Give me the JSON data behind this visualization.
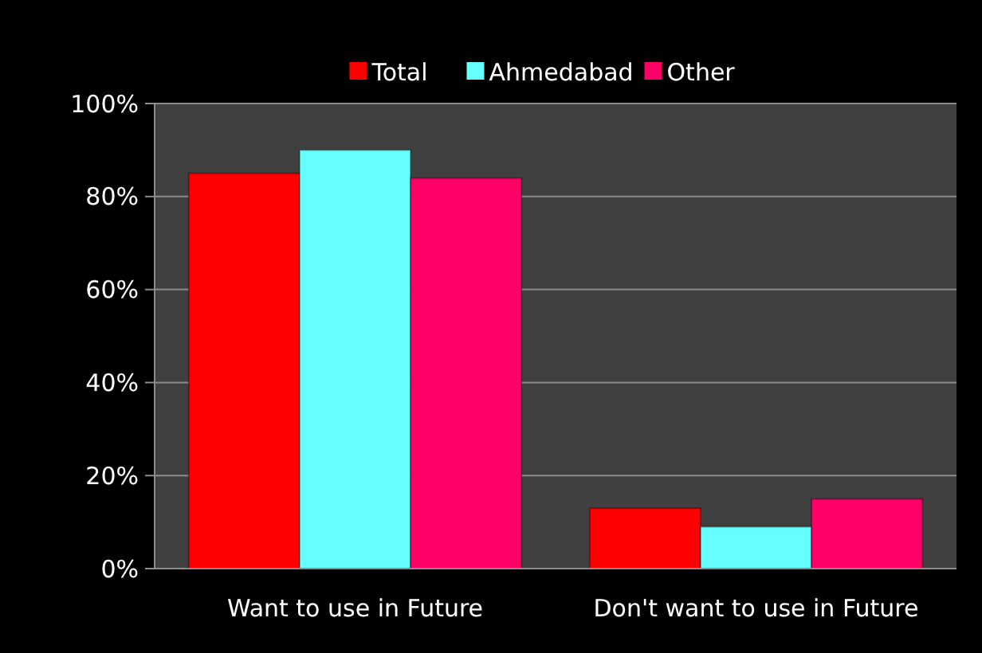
{
  "chart_data": {
    "type": "bar",
    "categories": [
      "Want to use in Future",
      "Don't want to use in Future"
    ],
    "series": [
      {
        "name": "Total",
        "color": "#ff0000",
        "values": [
          85,
          13
        ]
      },
      {
        "name": "Ahmedabad",
        "color": "#66ffff",
        "values": [
          90,
          9
        ]
      },
      {
        "name": "Other",
        "color": "#ff0066",
        "values": [
          84,
          15
        ]
      }
    ],
    "ylim": [
      0,
      100
    ],
    "yticks": [
      {
        "value": 0,
        "label": "0%"
      },
      {
        "value": 20,
        "label": "20%"
      },
      {
        "value": 40,
        "label": "40%"
      },
      {
        "value": 60,
        "label": "60%"
      },
      {
        "value": 80,
        "label": "80%"
      },
      {
        "value": 100,
        "label": "100%"
      }
    ],
    "grid": true,
    "legend": "top"
  }
}
